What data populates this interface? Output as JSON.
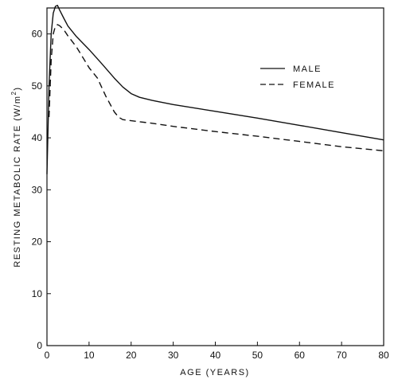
{
  "chart_data": {
    "type": "line",
    "title": "",
    "xlabel": "AGE (YEARS)",
    "ylabel_prefix": "RESTING METABOLIC RATE (W/m",
    "ylabel_sup": "2",
    "ylabel_suffix": ")",
    "xlim": [
      0,
      80
    ],
    "ylim": [
      0,
      65
    ],
    "xticks": [
      0,
      10,
      20,
      30,
      40,
      50,
      60,
      70,
      80
    ],
    "yticks": [
      0,
      10,
      20,
      30,
      40,
      50,
      60
    ],
    "grid": false,
    "legend": "top-right",
    "series": [
      {
        "name": "MALE",
        "style": "solid",
        "color": "#111111",
        "x": [
          0,
          0.5,
          1,
          1.5,
          2,
          2.5,
          3,
          4,
          5,
          7,
          10,
          13,
          16,
          18,
          20,
          22,
          25,
          30,
          40,
          50,
          60,
          70,
          80
        ],
        "y": [
          33,
          50,
          60,
          64,
          65.3,
          65.5,
          64.6,
          63,
          61.5,
          59.5,
          57,
          54.3,
          51.5,
          49.8,
          48.5,
          47.8,
          47.2,
          46.4,
          45.1,
          43.8,
          42.4,
          41,
          39.6
        ]
      },
      {
        "name": "FEMALE",
        "style": "dashed",
        "color": "#111111",
        "x": [
          0.5,
          1,
          1.5,
          2,
          2.5,
          3,
          4,
          5,
          7,
          10,
          12,
          14,
          16,
          17,
          18,
          20,
          25,
          30,
          40,
          50,
          60,
          70,
          80
        ],
        "y": [
          44,
          55,
          60,
          61.5,
          61.8,
          61.6,
          60.8,
          59.6,
          57.5,
          53.5,
          51.5,
          48,
          45,
          44,
          43.5,
          43.3,
          42.8,
          42.2,
          41.2,
          40.3,
          39.3,
          38.3,
          37.5
        ]
      }
    ]
  }
}
